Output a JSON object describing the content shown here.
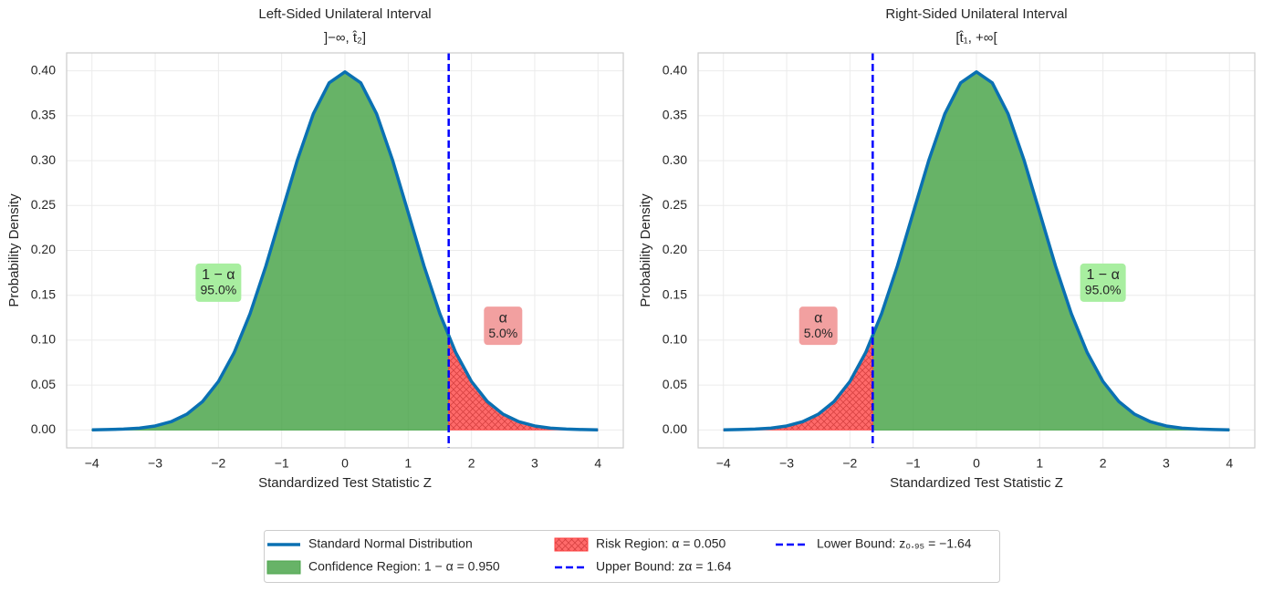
{
  "chart_data": [
    {
      "type": "area",
      "title": "Left-Sided Unilateral Interval",
      "subtitle": "]−∞, t̂₂]",
      "xlabel": "Standardized Test Statistic Z",
      "ylabel": "Probability Density",
      "xlim": [
        -4.4,
        4.4
      ],
      "ylim": [
        -0.02,
        0.42
      ],
      "grid": true,
      "xticks": [
        {
          "value": -4,
          "label": "−4"
        },
        {
          "value": -3,
          "label": "−3"
        },
        {
          "value": -2,
          "label": "−2"
        },
        {
          "value": -1,
          "label": "−1"
        },
        0,
        1,
        2,
        3,
        4
      ],
      "yticks": [
        {
          "value": 0,
          "label": "0.00"
        },
        {
          "value": 0.05,
          "label": "0.05"
        },
        {
          "value": 0.1,
          "label": "0.10"
        },
        {
          "value": 0.15,
          "label": "0.15"
        },
        {
          "value": 0.2,
          "label": "0.20"
        },
        {
          "value": 0.25,
          "label": "0.25"
        },
        {
          "value": 0.3,
          "label": "0.30"
        },
        {
          "value": 0.35,
          "label": "0.35"
        },
        {
          "value": 0.4,
          "label": "0.40"
        }
      ],
      "series": [
        {
          "name": "Confidence Region: 1 − α = 0.950",
          "type": "fill",
          "color": "#4ca64c",
          "x": [
            -4,
            -3.75,
            -3.5,
            -3.25,
            -3,
            -2.75,
            -2.5,
            -2.25,
            -2,
            -1.75,
            -1.5,
            -1.25,
            -1,
            -0.75,
            -0.5,
            -0.25,
            0,
            0.25,
            0.5,
            0.75,
            1,
            1.25,
            1.5,
            1.64
          ],
          "values": [
            0.0001,
            0.0004,
            0.0009,
            0.002,
            0.0044,
            0.0091,
            0.0175,
            0.0317,
            0.054,
            0.0863,
            0.1295,
            0.1826,
            0.242,
            0.3011,
            0.3521,
            0.3867,
            0.3989,
            0.3867,
            0.3521,
            0.3011,
            0.242,
            0.1826,
            0.1295,
            0.104
          ]
        },
        {
          "name": "Risk Region: α = 0.050",
          "type": "hatch",
          "color": "#ff4040",
          "x": [
            1.64,
            1.75,
            2,
            2.25,
            2.5,
            2.75,
            3,
            3.25,
            3.5,
            3.75,
            4
          ],
          "values": [
            0.104,
            0.0863,
            0.054,
            0.0317,
            0.0175,
            0.0091,
            0.0044,
            0.002,
            0.0009,
            0.0004,
            0.0001
          ]
        },
        {
          "name": "Standard Normal Distribution",
          "type": "line",
          "color": "#0a70b2",
          "x": [
            -4,
            -3.75,
            -3.5,
            -3.25,
            -3,
            -2.75,
            -2.5,
            -2.25,
            -2,
            -1.75,
            -1.5,
            -1.25,
            -1,
            -0.75,
            -0.5,
            -0.25,
            0,
            0.25,
            0.5,
            0.75,
            1,
            1.25,
            1.5,
            1.75,
            2,
            2.25,
            2.5,
            2.75,
            3,
            3.25,
            3.5,
            3.75,
            4
          ],
          "values": [
            0.0001,
            0.0004,
            0.0009,
            0.002,
            0.0044,
            0.0091,
            0.0175,
            0.0317,
            0.054,
            0.0863,
            0.1295,
            0.1826,
            0.242,
            0.3011,
            0.3521,
            0.3867,
            0.3989,
            0.3867,
            0.3521,
            0.3011,
            0.242,
            0.1826,
            0.1295,
            0.0863,
            0.054,
            0.0317,
            0.0175,
            0.0091,
            0.0044,
            0.002,
            0.0009,
            0.0004,
            0.0001
          ]
        },
        {
          "name": "Upper Bound: zα = 1.64",
          "type": "vline",
          "color": "#0000ff",
          "value": 1.64
        }
      ],
      "annotations": [
        {
          "symbol": "1 − α",
          "label": "95.0%",
          "x": -2,
          "y": 0.164,
          "color": "#a8eea0"
        },
        {
          "symbol": "α",
          "label": "5.0%",
          "x": 2.5,
          "y": 0.116,
          "color": "#f2a0a0"
        }
      ]
    },
    {
      "type": "area",
      "title": "Right-Sided Unilateral Interval",
      "subtitle": "[t̂₁, +∞[",
      "xlabel": "Standardized Test Statistic Z",
      "ylabel": "Probability Density",
      "xlim": [
        -4.4,
        4.4
      ],
      "ylim": [
        -0.02,
        0.42
      ],
      "grid": true,
      "xticks": [
        {
          "value": -4,
          "label": "−4"
        },
        {
          "value": -3,
          "label": "−3"
        },
        {
          "value": -2,
          "label": "−2"
        },
        {
          "value": -1,
          "label": "−1"
        },
        0,
        1,
        2,
        3,
        4
      ],
      "yticks": [
        {
          "value": 0,
          "label": "0.00"
        },
        {
          "value": 0.05,
          "label": "0.05"
        },
        {
          "value": 0.1,
          "label": "0.10"
        },
        {
          "value": 0.15,
          "label": "0.15"
        },
        {
          "value": 0.2,
          "label": "0.20"
        },
        {
          "value": 0.25,
          "label": "0.25"
        },
        {
          "value": 0.3,
          "label": "0.30"
        },
        {
          "value": 0.35,
          "label": "0.35"
        },
        {
          "value": 0.4,
          "label": "0.40"
        }
      ],
      "series": [
        {
          "type": "fill",
          "color": "#4ca64c",
          "x": [
            -1.64,
            -1.5,
            -1.25,
            -1,
            -0.75,
            -0.5,
            -0.25,
            0,
            0.25,
            0.5,
            0.75,
            1,
            1.25,
            1.5,
            1.75,
            2,
            2.25,
            2.5,
            2.75,
            3,
            3.25,
            3.5,
            3.75,
            4
          ],
          "values": [
            0.104,
            0.1295,
            0.1826,
            0.242,
            0.3011,
            0.3521,
            0.3867,
            0.3989,
            0.3867,
            0.3521,
            0.3011,
            0.242,
            0.1826,
            0.1295,
            0.0863,
            0.054,
            0.0317,
            0.0175,
            0.0091,
            0.0044,
            0.002,
            0.0009,
            0.0004,
            0.0001
          ]
        },
        {
          "type": "hatch",
          "color": "#ff4040",
          "x": [
            -4,
            -3.75,
            -3.5,
            -3.25,
            -3,
            -2.75,
            -2.5,
            -2.25,
            -2,
            -1.75,
            -1.64
          ],
          "values": [
            0.0001,
            0.0004,
            0.0009,
            0.002,
            0.0044,
            0.0091,
            0.0175,
            0.0317,
            0.054,
            0.0863,
            0.104
          ]
        },
        {
          "type": "line",
          "color": "#0a70b2",
          "x": [
            -4,
            -3.75,
            -3.5,
            -3.25,
            -3,
            -2.75,
            -2.5,
            -2.25,
            -2,
            -1.75,
            -1.5,
            -1.25,
            -1,
            -0.75,
            -0.5,
            -0.25,
            0,
            0.25,
            0.5,
            0.75,
            1,
            1.25,
            1.5,
            1.75,
            2,
            2.25,
            2.5,
            2.75,
            3,
            3.25,
            3.5,
            3.75,
            4
          ],
          "values": [
            0.0001,
            0.0004,
            0.0009,
            0.002,
            0.0044,
            0.0091,
            0.0175,
            0.0317,
            0.054,
            0.0863,
            0.1295,
            0.1826,
            0.242,
            0.3011,
            0.3521,
            0.3867,
            0.3989,
            0.3867,
            0.3521,
            0.3011,
            0.242,
            0.1826,
            0.1295,
            0.0863,
            0.054,
            0.0317,
            0.0175,
            0.0091,
            0.0044,
            0.002,
            0.0009,
            0.0004,
            0.0001
          ]
        },
        {
          "name": "Lower Bound: z₀.₉₅ = −1.64",
          "type": "vline",
          "color": "#0000ff",
          "value": -1.64
        }
      ],
      "annotations": [
        {
          "symbol": "α",
          "label": "5.0%",
          "x": -2.5,
          "y": 0.116,
          "color": "#f2a0a0"
        },
        {
          "symbol": "1 − α",
          "label": "95.0%",
          "x": 2,
          "y": 0.164,
          "color": "#a8eea0"
        }
      ]
    }
  ]
}
